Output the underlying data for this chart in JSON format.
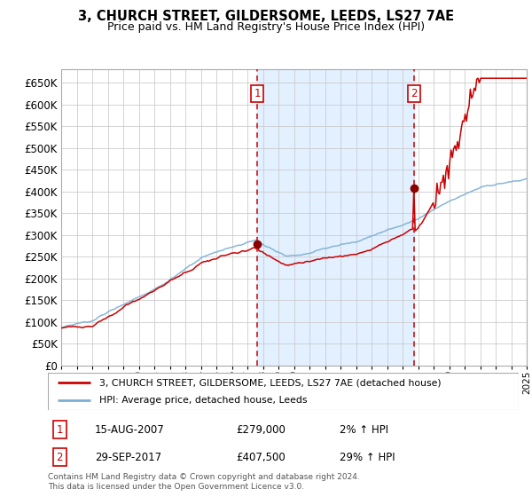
{
  "title": "3, CHURCH STREET, GILDERSOME, LEEDS, LS27 7AE",
  "subtitle": "Price paid vs. HM Land Registry's House Price Index (HPI)",
  "legend_line1": "3, CHURCH STREET, GILDERSOME, LEEDS, LS27 7AE (detached house)",
  "legend_line2": "HPI: Average price, detached house, Leeds",
  "annotation1_date": "15-AUG-2007",
  "annotation1_price": "£279,000",
  "annotation1_hpi": "2% ↑ HPI",
  "annotation2_date": "29-SEP-2017",
  "annotation2_price": "£407,500",
  "annotation2_hpi": "29% ↑ HPI",
  "footnote": "Contains HM Land Registry data © Crown copyright and database right 2024.\nThis data is licensed under the Open Government Licence v3.0.",
  "hpi_color": "#7bafd4",
  "price_color": "#cc0000",
  "bg_shaded_color": "#ddeeff",
  "grid_color": "#cccccc",
  "ylim": [
    0,
    680000
  ],
  "ytick_values": [
    0,
    50000,
    100000,
    150000,
    200000,
    250000,
    300000,
    350000,
    400000,
    450000,
    500000,
    550000,
    600000,
    650000
  ],
  "sale1_x": 2007.625,
  "sale1_y": 279000,
  "sale2_x": 2017.75,
  "sale2_y": 407500,
  "xmin": 1995,
  "xmax": 2025
}
